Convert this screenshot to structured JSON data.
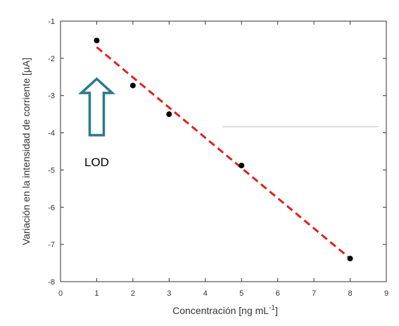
{
  "chart_data": {
    "type": "scatter",
    "xlabel": "Concentración [ng mL",
    "xlabel_sup": "-1",
    "xlabel_end": "]",
    "ylabel": "Variación en la intensidad de corriente [μA]",
    "xlim": [
      0,
      9
    ],
    "ylim": [
      -8,
      -1
    ],
    "xticks": [
      0,
      1,
      2,
      3,
      4,
      5,
      6,
      7,
      8,
      9
    ],
    "yticks": [
      -1,
      -2,
      -3,
      -4,
      -5,
      -6,
      -7,
      -8
    ],
    "points": [
      {
        "x": 1,
        "y": -1.52
      },
      {
        "x": 2,
        "y": -2.73
      },
      {
        "x": 3,
        "y": -3.5
      },
      {
        "x": 5,
        "y": -4.88
      },
      {
        "x": 8,
        "y": -7.38
      }
    ],
    "fit_line": {
      "x": [
        1,
        8
      ],
      "y": [
        -1.7,
        -7.38
      ],
      "color": "#e02020",
      "style": "dashed"
    },
    "point_color": "#000000",
    "annotation": {
      "label": "LOD",
      "arrow_color": "#2a7a8c",
      "arrow_x": 1.0
    }
  }
}
